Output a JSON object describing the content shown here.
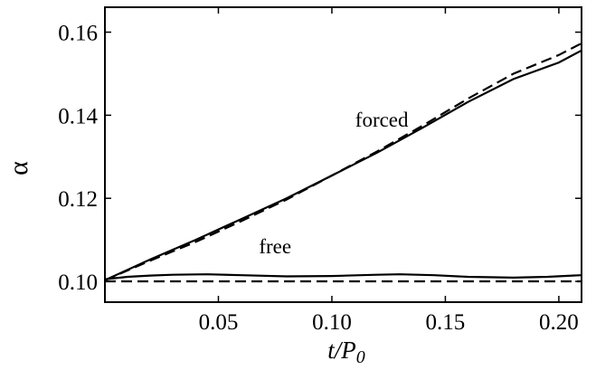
{
  "chart_data": {
    "type": "line",
    "title": "",
    "xlabel": "t/P0",
    "xlabel_parts": {
      "main": "t/P",
      "sub": "0"
    },
    "ylabel": "α",
    "xlim": [
      0.0,
      0.21
    ],
    "ylim": [
      0.095,
      0.166
    ],
    "grid": false,
    "legend": "none",
    "x_ticks": [
      0.05,
      0.1,
      0.15,
      0.2
    ],
    "x_tick_labels": [
      "0.05",
      "0.10",
      "0.15",
      "0.20"
    ],
    "y_ticks": [
      0.1,
      0.12,
      0.14,
      0.16
    ],
    "y_tick_labels": [
      "0.10",
      "0.12",
      "0.14",
      "0.16"
    ],
    "annotations": [
      {
        "text": "forced",
        "x": 0.122,
        "y": 0.139
      },
      {
        "text": "free",
        "x": 0.075,
        "y": 0.1085
      }
    ],
    "series": [
      {
        "style": "solid",
        "points": [
          [
            0.0,
            0.1003
          ],
          [
            0.02,
            0.1053
          ],
          [
            0.04,
            0.11
          ],
          [
            0.06,
            0.115
          ],
          [
            0.08,
            0.12
          ],
          [
            0.1,
            0.1255
          ],
          [
            0.12,
            0.131
          ],
          [
            0.14,
            0.137
          ],
          [
            0.16,
            0.1432
          ],
          [
            0.18,
            0.1487
          ],
          [
            0.2,
            0.1527
          ],
          [
            0.21,
            0.1556
          ]
        ]
      },
      {
        "style": "dashed",
        "points": [
          [
            0.0,
            0.1003
          ],
          [
            0.02,
            0.105
          ],
          [
            0.04,
            0.1095
          ],
          [
            0.06,
            0.1145
          ],
          [
            0.08,
            0.1197
          ],
          [
            0.1,
            0.1255
          ],
          [
            0.12,
            0.1313
          ],
          [
            0.14,
            0.1375
          ],
          [
            0.16,
            0.144
          ],
          [
            0.18,
            0.15
          ],
          [
            0.2,
            0.1545
          ],
          [
            0.21,
            0.1573
          ]
        ]
      },
      {
        "style": "solid",
        "points": [
          [
            0.0,
            0.1005
          ],
          [
            0.01,
            0.1011
          ],
          [
            0.02,
            0.1014
          ],
          [
            0.03,
            0.1016
          ],
          [
            0.045,
            0.1017
          ],
          [
            0.06,
            0.1015
          ],
          [
            0.08,
            0.1012
          ],
          [
            0.1,
            0.1013
          ],
          [
            0.12,
            0.1016
          ],
          [
            0.13,
            0.1017
          ],
          [
            0.145,
            0.1015
          ],
          [
            0.16,
            0.1011
          ],
          [
            0.18,
            0.1009
          ],
          [
            0.195,
            0.1011
          ],
          [
            0.21,
            0.1015
          ]
        ]
      },
      {
        "style": "dashed",
        "points": [
          [
            0.0,
            0.1
          ],
          [
            0.21,
            0.1
          ]
        ]
      }
    ]
  }
}
